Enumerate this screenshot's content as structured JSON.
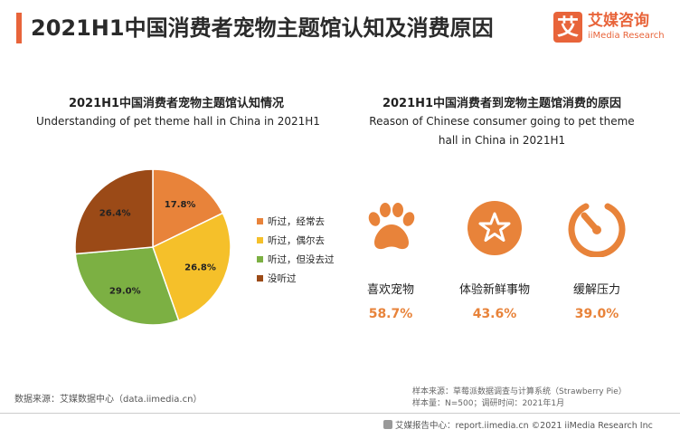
{
  "header": {
    "title": "2021H1中国消费者宠物主题馆认知及消费原因",
    "logo_char": "艾",
    "logo_cn": "艾媒咨询",
    "logo_en": "iiMedia Research"
  },
  "left_panel": {
    "title_cn": "2021H1中国消费者宠物主题馆认知情况",
    "title_en": "Understanding of pet theme hall in China in 2021H1"
  },
  "right_panel": {
    "title_cn": "2021H1中国消费者到宠物主题馆消费的原因",
    "title_en": "Reason of Chinese consumer going to pet theme hall in China in 2021H1",
    "reasons": [
      {
        "label": "喜欢宠物",
        "value": "58.7%",
        "icon": "paw-icon"
      },
      {
        "label": "体验新鲜事物",
        "value": "43.6%",
        "icon": "star-badge-icon"
      },
      {
        "label": "缓解压力",
        "value": "39.0%",
        "icon": "gauge-icon"
      }
    ]
  },
  "chart_data": {
    "type": "pie",
    "title": "2021H1中国消费者宠物主题馆认知情况",
    "categories": [
      "听过，经常去",
      "听过，偶尔去",
      "听过，但没去过",
      "没听过"
    ],
    "values": [
      17.8,
      26.8,
      29.0,
      26.4
    ],
    "value_labels": [
      "17.8%",
      "26.8%",
      "29.0%",
      "26.4%"
    ],
    "colors": [
      "#e8833a",
      "#f5c02a",
      "#7cb043",
      "#9b4a17"
    ],
    "legend_position": "right"
  },
  "colors": {
    "accent": "#e8643a",
    "value": "#e8833a"
  },
  "footer": {
    "data_source": "数据来源：艾媒数据中心（data.iimedia.cn）",
    "sample_source": "样本来源：草莓派数据调查与计算系统（Strawberry Pie）",
    "sample_size": "样本量：N=500；调研时间：2021年1月",
    "copyright": "艾媒报告中心：report.iimedia.cn  ©2021  iiMedia Research  Inc"
  }
}
